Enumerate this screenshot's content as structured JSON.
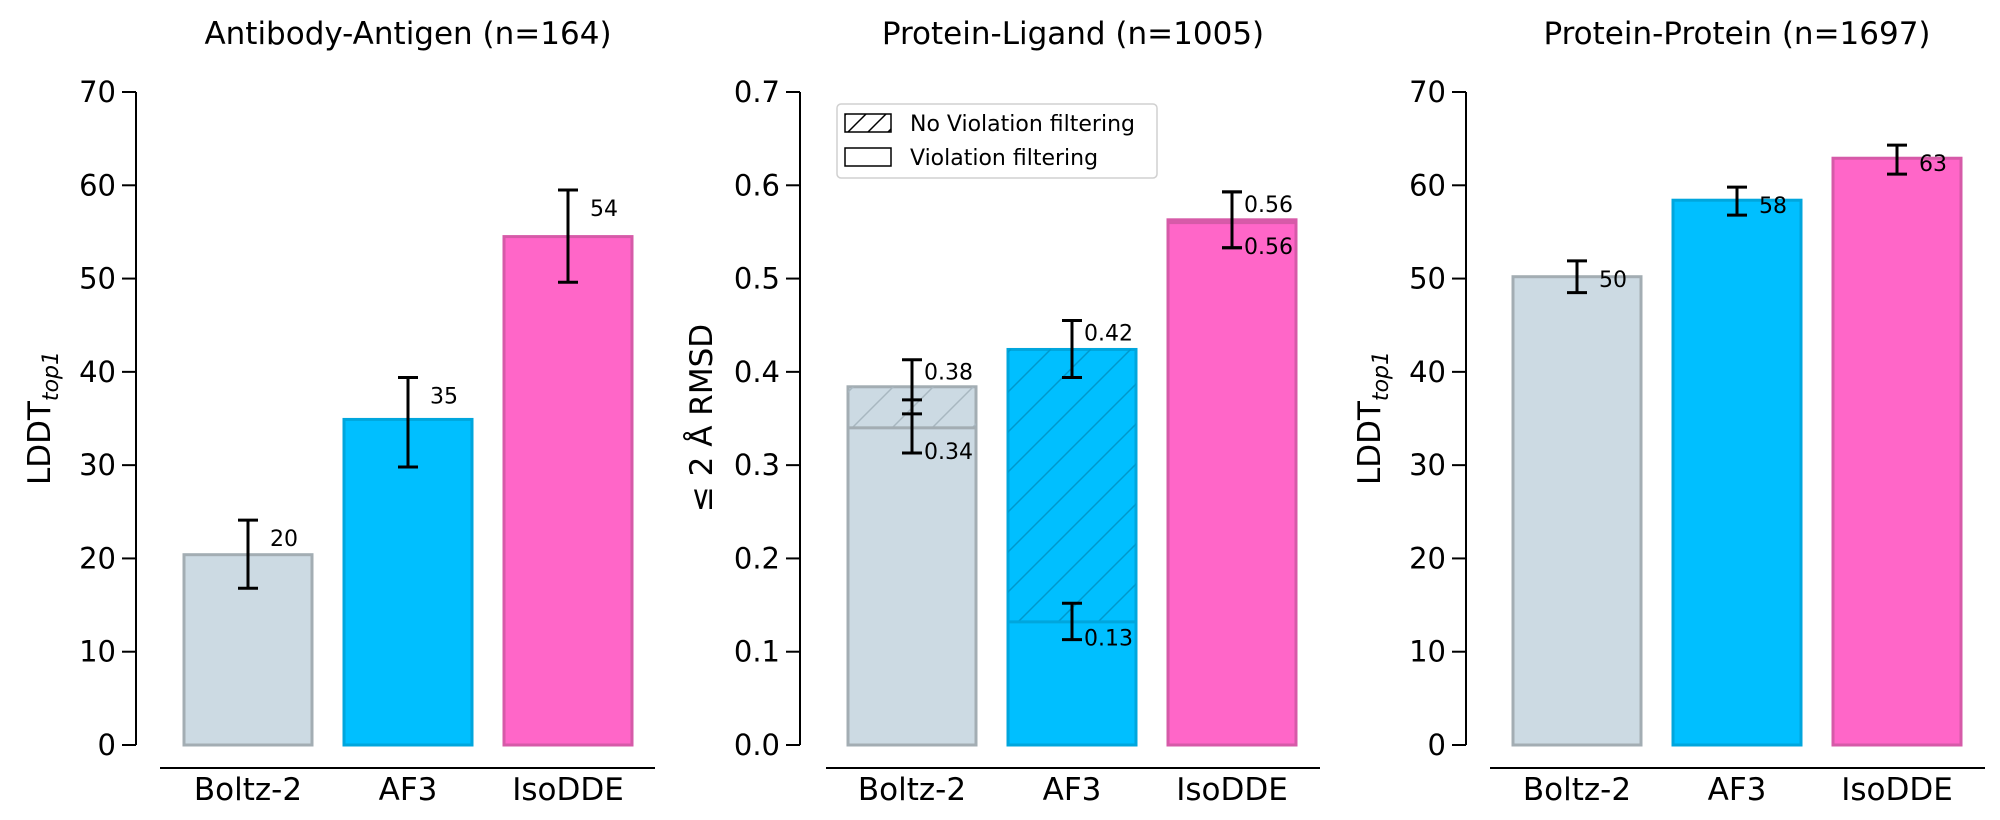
{
  "chart_data": [
    {
      "type": "bar",
      "title": "Antibody-Antigen (n=164)",
      "xlabel": "",
      "ylabel": "LDDT",
      "ylabel_subscript": "top1",
      "ylim": [
        0,
        70
      ],
      "yticks": [
        0,
        10,
        20,
        30,
        40,
        50,
        60,
        70
      ],
      "ytick_labels": [
        "0",
        "10",
        "20",
        "30",
        "40",
        "50",
        "60",
        "70"
      ],
      "categories": [
        "Boltz-2",
        "AF3",
        "IsoDDE"
      ],
      "grid": false,
      "series": [
        {
          "name": "LDDT top1",
          "values": [
            20.4,
            34.9,
            54.5
          ],
          "error_low": [
            16.8,
            29.8,
            49.6
          ],
          "error_high": [
            24.1,
            39.4,
            59.5
          ],
          "labels": [
            "20",
            "35",
            "54"
          ]
        }
      ]
    },
    {
      "type": "bar",
      "title": "Protein-Ligand (n=1005)",
      "xlabel": "",
      "ylabel": "≤ 2 Å RMSD",
      "ylim": [
        0.0,
        0.7
      ],
      "yticks": [
        0.0,
        0.1,
        0.2,
        0.3,
        0.4,
        0.5,
        0.6,
        0.7
      ],
      "ytick_labels": [
        "0.0",
        "0.1",
        "0.2",
        "0.3",
        "0.4",
        "0.5",
        "0.6",
        "0.7"
      ],
      "categories": [
        "Boltz-2",
        "AF3",
        "IsoDDE"
      ],
      "grid": false,
      "legend": {
        "position": "top-left",
        "entries": [
          {
            "label": "No Violation filtering",
            "pattern": "hatched"
          },
          {
            "label": "Violation filtering",
            "pattern": "solid"
          }
        ]
      },
      "series": [
        {
          "name": "No Violation filtering",
          "pattern": "hatched",
          "values": [
            0.384,
            0.424,
            0.563
          ],
          "error_low": [
            0.355,
            0.394,
            0.533
          ],
          "error_high": [
            0.413,
            0.455,
            0.593
          ],
          "labels": [
            "0.38",
            "0.42",
            "0.56"
          ]
        },
        {
          "name": "Violation filtering",
          "pattern": "solid",
          "values": [
            0.34,
            0.132,
            0.56
          ],
          "error_low": [
            0.313,
            0.113,
            0.533
          ],
          "error_high": [
            0.37,
            0.152,
            0.593
          ],
          "labels": [
            "0.34",
            "0.13",
            "0.56"
          ]
        }
      ]
    },
    {
      "type": "bar",
      "title": "Protein-Protein (n=1697)",
      "xlabel": "",
      "ylabel": "LDDT",
      "ylabel_subscript": "top1",
      "ylim": [
        0,
        70
      ],
      "yticks": [
        0,
        10,
        20,
        30,
        40,
        50,
        60,
        70
      ],
      "ytick_labels": [
        "0",
        "10",
        "20",
        "30",
        "40",
        "50",
        "60",
        "70"
      ],
      "categories": [
        "Boltz-2",
        "AF3",
        "IsoDDE"
      ],
      "grid": false,
      "series": [
        {
          "name": "LDDT top1",
          "values": [
            50.2,
            58.4,
            62.9
          ],
          "error_low": [
            48.5,
            56.8,
            61.2
          ],
          "error_high": [
            51.9,
            59.8,
            64.3
          ],
          "labels": [
            "50",
            "58",
            "63"
          ]
        }
      ]
    }
  ],
  "colors": {
    "Boltz-2": {
      "fill": "#ccdae3",
      "edge": "#a3adb3"
    },
    "AF3": {
      "fill": "#00bfff",
      "edge": "#00a6dd"
    },
    "IsoDDE": {
      "fill": "#ff66c8",
      "edge": "#d65aa8"
    },
    "hatch_boltz": "#a8b7c0",
    "hatch_af3": "#0098cc",
    "text": "#000000"
  }
}
